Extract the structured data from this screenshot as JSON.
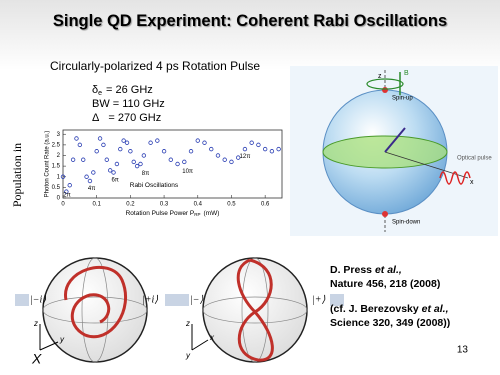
{
  "title": "Single QD Experiment: Coherent Rabi Oscillations",
  "subtitle": "Circularly-polarized 4 ps Rotation Pulse",
  "parameters": [
    {
      "symbol": "δ",
      "subscript": "e",
      "value": "= 26 GHz"
    },
    {
      "symbol": "BW",
      "value": "= 110 GHz"
    },
    {
      "symbol": "Δ",
      "value": "= 270 GHz"
    }
  ],
  "side_label": "Population in",
  "plot": {
    "type": "scatter",
    "y_label": "Photon Count Rate (a.u.)",
    "x_label": "Rotation Pulse Power P",
    "x_label_subscript": "RP",
    "x_label_unit": "(mW)",
    "annotation": "Rabi Oscillations",
    "pi_labels": [
      "2π",
      "4π",
      "6π",
      "8π",
      "10π",
      "12π"
    ],
    "color": "#2b3fb4",
    "x": [
      0.0,
      0.01,
      0.02,
      0.03,
      0.04,
      0.05,
      0.06,
      0.07,
      0.08,
      0.09,
      0.1,
      0.11,
      0.12,
      0.13,
      0.14,
      0.15,
      0.16,
      0.17,
      0.18,
      0.19,
      0.2,
      0.21,
      0.22,
      0.23,
      0.24,
      0.26,
      0.28,
      0.3,
      0.32,
      0.34,
      0.36,
      0.38,
      0.4,
      0.42,
      0.44,
      0.46,
      0.48,
      0.5,
      0.52,
      0.54,
      0.56,
      0.58,
      0.6,
      0.62,
      0.64
    ],
    "y": [
      1.0,
      0.3,
      0.6,
      1.8,
      2.8,
      2.5,
      1.8,
      1.0,
      0.8,
      1.2,
      2.2,
      2.8,
      2.5,
      1.8,
      1.3,
      1.2,
      1.6,
      2.3,
      2.7,
      2.6,
      2.2,
      1.7,
      1.5,
      1.6,
      2.0,
      2.6,
      2.7,
      2.2,
      1.8,
      1.6,
      1.7,
      2.2,
      2.7,
      2.6,
      2.3,
      2.0,
      1.8,
      1.7,
      1.9,
      2.3,
      2.6,
      2.5,
      2.3,
      2.2,
      2.3
    ],
    "xlim": [
      0,
      0.65
    ],
    "ylim": [
      0,
      3.2
    ],
    "xticks": [
      0,
      0.1,
      0.2,
      0.3,
      0.4,
      0.5,
      0.6
    ],
    "yticks": [
      0,
      0.5,
      1,
      1.5,
      2,
      2.5,
      3
    ]
  },
  "bloch_diagram": {
    "b_field": "B",
    "z": "z",
    "x": "x",
    "spin_up": "Spin-up",
    "spin_down": "Spin-down",
    "optical_pulse": "Optical pulse"
  },
  "rotations": [
    {
      "from": "|−i⟩",
      "to": "|+i⟩",
      "axes": [
        "z",
        "y",
        "X"
      ]
    },
    {
      "from": "|−⟩",
      "to": "|+⟩",
      "axes": [
        "z",
        "x",
        "y"
      ]
    }
  ],
  "references": [
    {
      "author": "D. Press ",
      "etal": "et al.,",
      "citation": "Nature 456, 218 (2008)"
    },
    {
      "author": "(cf. J. Berezovsky ",
      "etal": "et al.,",
      "citation": "Science 320, 349 (2008))"
    }
  ],
  "page_number": "13"
}
